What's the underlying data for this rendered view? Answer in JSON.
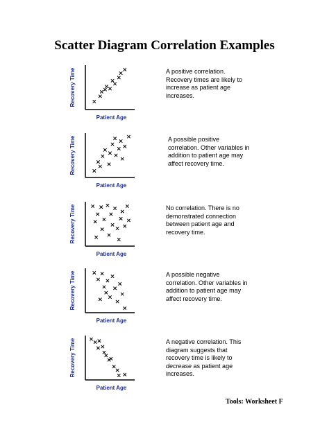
{
  "title": "Scatter Diagram Correlation Examples",
  "footer": "Tools:  Worksheet F",
  "chart_data": [
    {
      "type": "scatter",
      "xlabel": "Patient Age",
      "ylabel": "Recovery Time",
      "description": "A positive correlation. Recovery times are likely to increase as patient age increases.",
      "points": [
        [
          0.18,
          0.18
        ],
        [
          0.3,
          0.3
        ],
        [
          0.33,
          0.4
        ],
        [
          0.4,
          0.45
        ],
        [
          0.43,
          0.52
        ],
        [
          0.5,
          0.47
        ],
        [
          0.55,
          0.65
        ],
        [
          0.6,
          0.58
        ],
        [
          0.68,
          0.72
        ],
        [
          0.72,
          0.82
        ],
        [
          0.8,
          0.9
        ]
      ]
    },
    {
      "type": "scatter",
      "xlabel": "Patient Age",
      "ylabel": "Recovery Time",
      "description": "A possible positive correlation. Other variables in addition to patient age may affect recovery time.",
      "points": [
        [
          0.18,
          0.15
        ],
        [
          0.26,
          0.35
        ],
        [
          0.3,
          0.25
        ],
        [
          0.35,
          0.48
        ],
        [
          0.4,
          0.62
        ],
        [
          0.48,
          0.3
        ],
        [
          0.5,
          0.55
        ],
        [
          0.55,
          0.75
        ],
        [
          0.6,
          0.88
        ],
        [
          0.62,
          0.5
        ],
        [
          0.68,
          0.65
        ],
        [
          0.72,
          0.82
        ],
        [
          0.75,
          0.42
        ],
        [
          0.8,
          0.7
        ],
        [
          0.88,
          0.92
        ]
      ]
    },
    {
      "type": "scatter",
      "xlabel": "Patient Age",
      "ylabel": "Recovery Time",
      "description": "No correlation. There is no demonstrated connection between patient age and recovery time.",
      "points": [
        [
          0.15,
          0.9
        ],
        [
          0.2,
          0.55
        ],
        [
          0.22,
          0.2
        ],
        [
          0.25,
          0.72
        ],
        [
          0.32,
          0.88
        ],
        [
          0.34,
          0.38
        ],
        [
          0.38,
          0.6
        ],
        [
          0.45,
          0.92
        ],
        [
          0.48,
          0.25
        ],
        [
          0.52,
          0.72
        ],
        [
          0.55,
          0.48
        ],
        [
          0.6,
          0.85
        ],
        [
          0.65,
          0.4
        ],
        [
          0.68,
          0.15
        ],
        [
          0.72,
          0.62
        ],
        [
          0.75,
          0.78
        ],
        [
          0.8,
          0.45
        ],
        [
          0.85,
          0.9
        ],
        [
          0.88,
          0.58
        ]
      ]
    },
    {
      "type": "scatter",
      "xlabel": "Patient Age",
      "ylabel": "Recovery Time",
      "description": "A possible negative correlation. Other variables in addition to patient age may affect recovery time.",
      "points": [
        [
          0.18,
          0.9
        ],
        [
          0.26,
          0.75
        ],
        [
          0.3,
          0.3
        ],
        [
          0.34,
          0.88
        ],
        [
          0.38,
          0.58
        ],
        [
          0.42,
          0.45
        ],
        [
          0.45,
          0.72
        ],
        [
          0.5,
          0.35
        ],
        [
          0.55,
          0.82
        ],
        [
          0.6,
          0.55
        ],
        [
          0.65,
          0.25
        ],
        [
          0.7,
          0.65
        ],
        [
          0.75,
          0.42
        ],
        [
          0.8,
          0.1
        ]
      ]
    },
    {
      "type": "scatter",
      "xlabel": "Patient Age",
      "ylabel": "Recovery Time",
      "description_parts": [
        "A negative correlation. This diagram suggests that recovery time is likely to ",
        "decrease",
        " as patient age increases."
      ],
      "points": [
        [
          0.12,
          0.92
        ],
        [
          0.2,
          0.85
        ],
        [
          0.26,
          0.72
        ],
        [
          0.28,
          0.88
        ],
        [
          0.35,
          0.75
        ],
        [
          0.38,
          0.62
        ],
        [
          0.42,
          0.55
        ],
        [
          0.48,
          0.45
        ],
        [
          0.52,
          0.48
        ],
        [
          0.58,
          0.3
        ],
        [
          0.65,
          0.22
        ],
        [
          0.68,
          0.1
        ],
        [
          0.8,
          0.12
        ]
      ]
    }
  ]
}
